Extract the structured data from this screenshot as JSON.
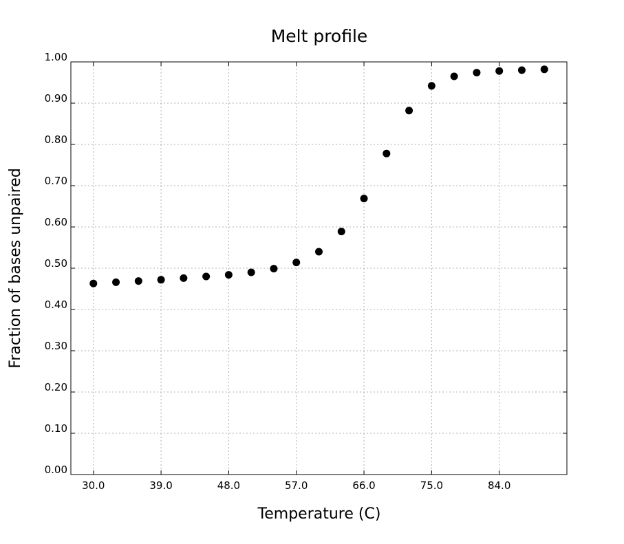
{
  "chart_data": {
    "type": "scatter",
    "title": "Melt profile",
    "xlabel": "Temperature (C)",
    "ylabel": "Fraction of bases unpaired",
    "xlim": [
      27.0,
      93.0
    ],
    "ylim": [
      0.0,
      1.0
    ],
    "xticks": [
      "30.0",
      "39.0",
      "48.0",
      "57.0",
      "66.0",
      "75.0",
      "84.0"
    ],
    "yticks": [
      "0.00",
      "0.10",
      "0.20",
      "0.30",
      "0.40",
      "0.50",
      "0.60",
      "0.70",
      "0.80",
      "0.90",
      "1.00"
    ],
    "grid": true,
    "legend": "none",
    "marker_color": "#000000",
    "x": [
      30,
      33,
      36,
      39,
      42,
      45,
      48,
      51,
      54,
      57,
      60,
      63,
      66,
      69,
      72,
      75,
      78,
      81,
      84,
      87,
      90
    ],
    "y": [
      0.463,
      0.466,
      0.469,
      0.472,
      0.476,
      0.48,
      0.484,
      0.49,
      0.499,
      0.514,
      0.54,
      0.589,
      0.669,
      0.778,
      0.882,
      0.942,
      0.965,
      0.974,
      0.978,
      0.98,
      0.982
    ]
  }
}
